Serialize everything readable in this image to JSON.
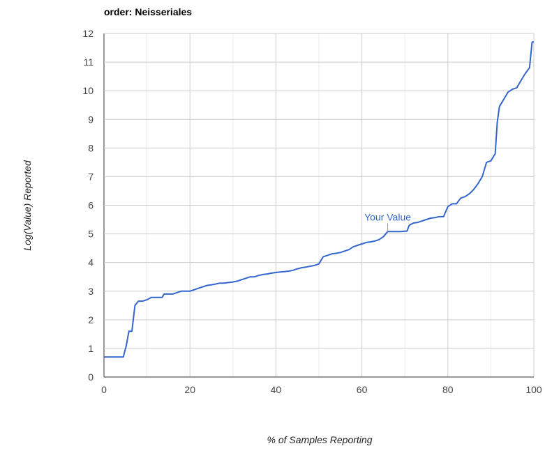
{
  "chart_data": {
    "type": "line",
    "title": "order: Neisseriales",
    "xlabel": "% of Samples Reporting",
    "ylabel": "Log(Value) Reported",
    "xlim": [
      0,
      100
    ],
    "ylim": [
      0,
      12
    ],
    "x_ticks": [
      0,
      20,
      40,
      60,
      80,
      100
    ],
    "y_ticks": [
      0,
      1,
      2,
      3,
      4,
      5,
      6,
      7,
      8,
      9,
      10,
      11,
      12
    ],
    "grid": true,
    "legend": "none",
    "line_color": "#3366cc",
    "series": [
      {
        "x": [
          0,
          4.5,
          5.2,
          5.8,
          6.5,
          7.2,
          8,
          9,
          10,
          11,
          12,
          13.5,
          14,
          16,
          17,
          18,
          20,
          21,
          22,
          23,
          24,
          25,
          26,
          27,
          28,
          29,
          30,
          31,
          32,
          33,
          34,
          35,
          36,
          37,
          38,
          39,
          40,
          41,
          42,
          43,
          44,
          45,
          46,
          47,
          48,
          49,
          50,
          51,
          52,
          53,
          54,
          55,
          56,
          57,
          58,
          59,
          60,
          61,
          62,
          63,
          64,
          65,
          66,
          67,
          68,
          69,
          70.5,
          71,
          72,
          73,
          74,
          75,
          76,
          77,
          78,
          79,
          80,
          81,
          82,
          83,
          84,
          85,
          86,
          87,
          88,
          89,
          90,
          91,
          91.5,
          92,
          93,
          94,
          95,
          96,
          97,
          98,
          99,
          99.6,
          100
        ],
        "y": [
          0.7,
          0.7,
          1.1,
          1.6,
          1.6,
          2.5,
          2.65,
          2.65,
          2.7,
          2.78,
          2.78,
          2.78,
          2.9,
          2.9,
          2.95,
          3.0,
          3.0,
          3.05,
          3.1,
          3.15,
          3.2,
          3.22,
          3.25,
          3.28,
          3.28,
          3.3,
          3.32,
          3.35,
          3.4,
          3.45,
          3.5,
          3.5,
          3.55,
          3.58,
          3.6,
          3.63,
          3.65,
          3.67,
          3.68,
          3.7,
          3.73,
          3.78,
          3.82,
          3.84,
          3.87,
          3.9,
          3.95,
          4.2,
          4.25,
          4.3,
          4.32,
          4.35,
          4.4,
          4.45,
          4.55,
          4.6,
          4.65,
          4.7,
          4.72,
          4.75,
          4.8,
          4.9,
          5.08,
          5.08,
          5.08,
          5.08,
          5.1,
          5.3,
          5.38,
          5.4,
          5.45,
          5.5,
          5.55,
          5.57,
          5.6,
          5.6,
          5.95,
          6.05,
          6.05,
          6.25,
          6.3,
          6.4,
          6.55,
          6.75,
          7.0,
          7.5,
          7.55,
          7.8,
          8.9,
          9.45,
          9.7,
          9.95,
          10.05,
          10.1,
          10.35,
          10.6,
          10.8,
          11.7,
          11.7
        ]
      }
    ],
    "annotations": [
      {
        "text": "Your Value",
        "x": 66,
        "y": 5.08
      }
    ]
  }
}
